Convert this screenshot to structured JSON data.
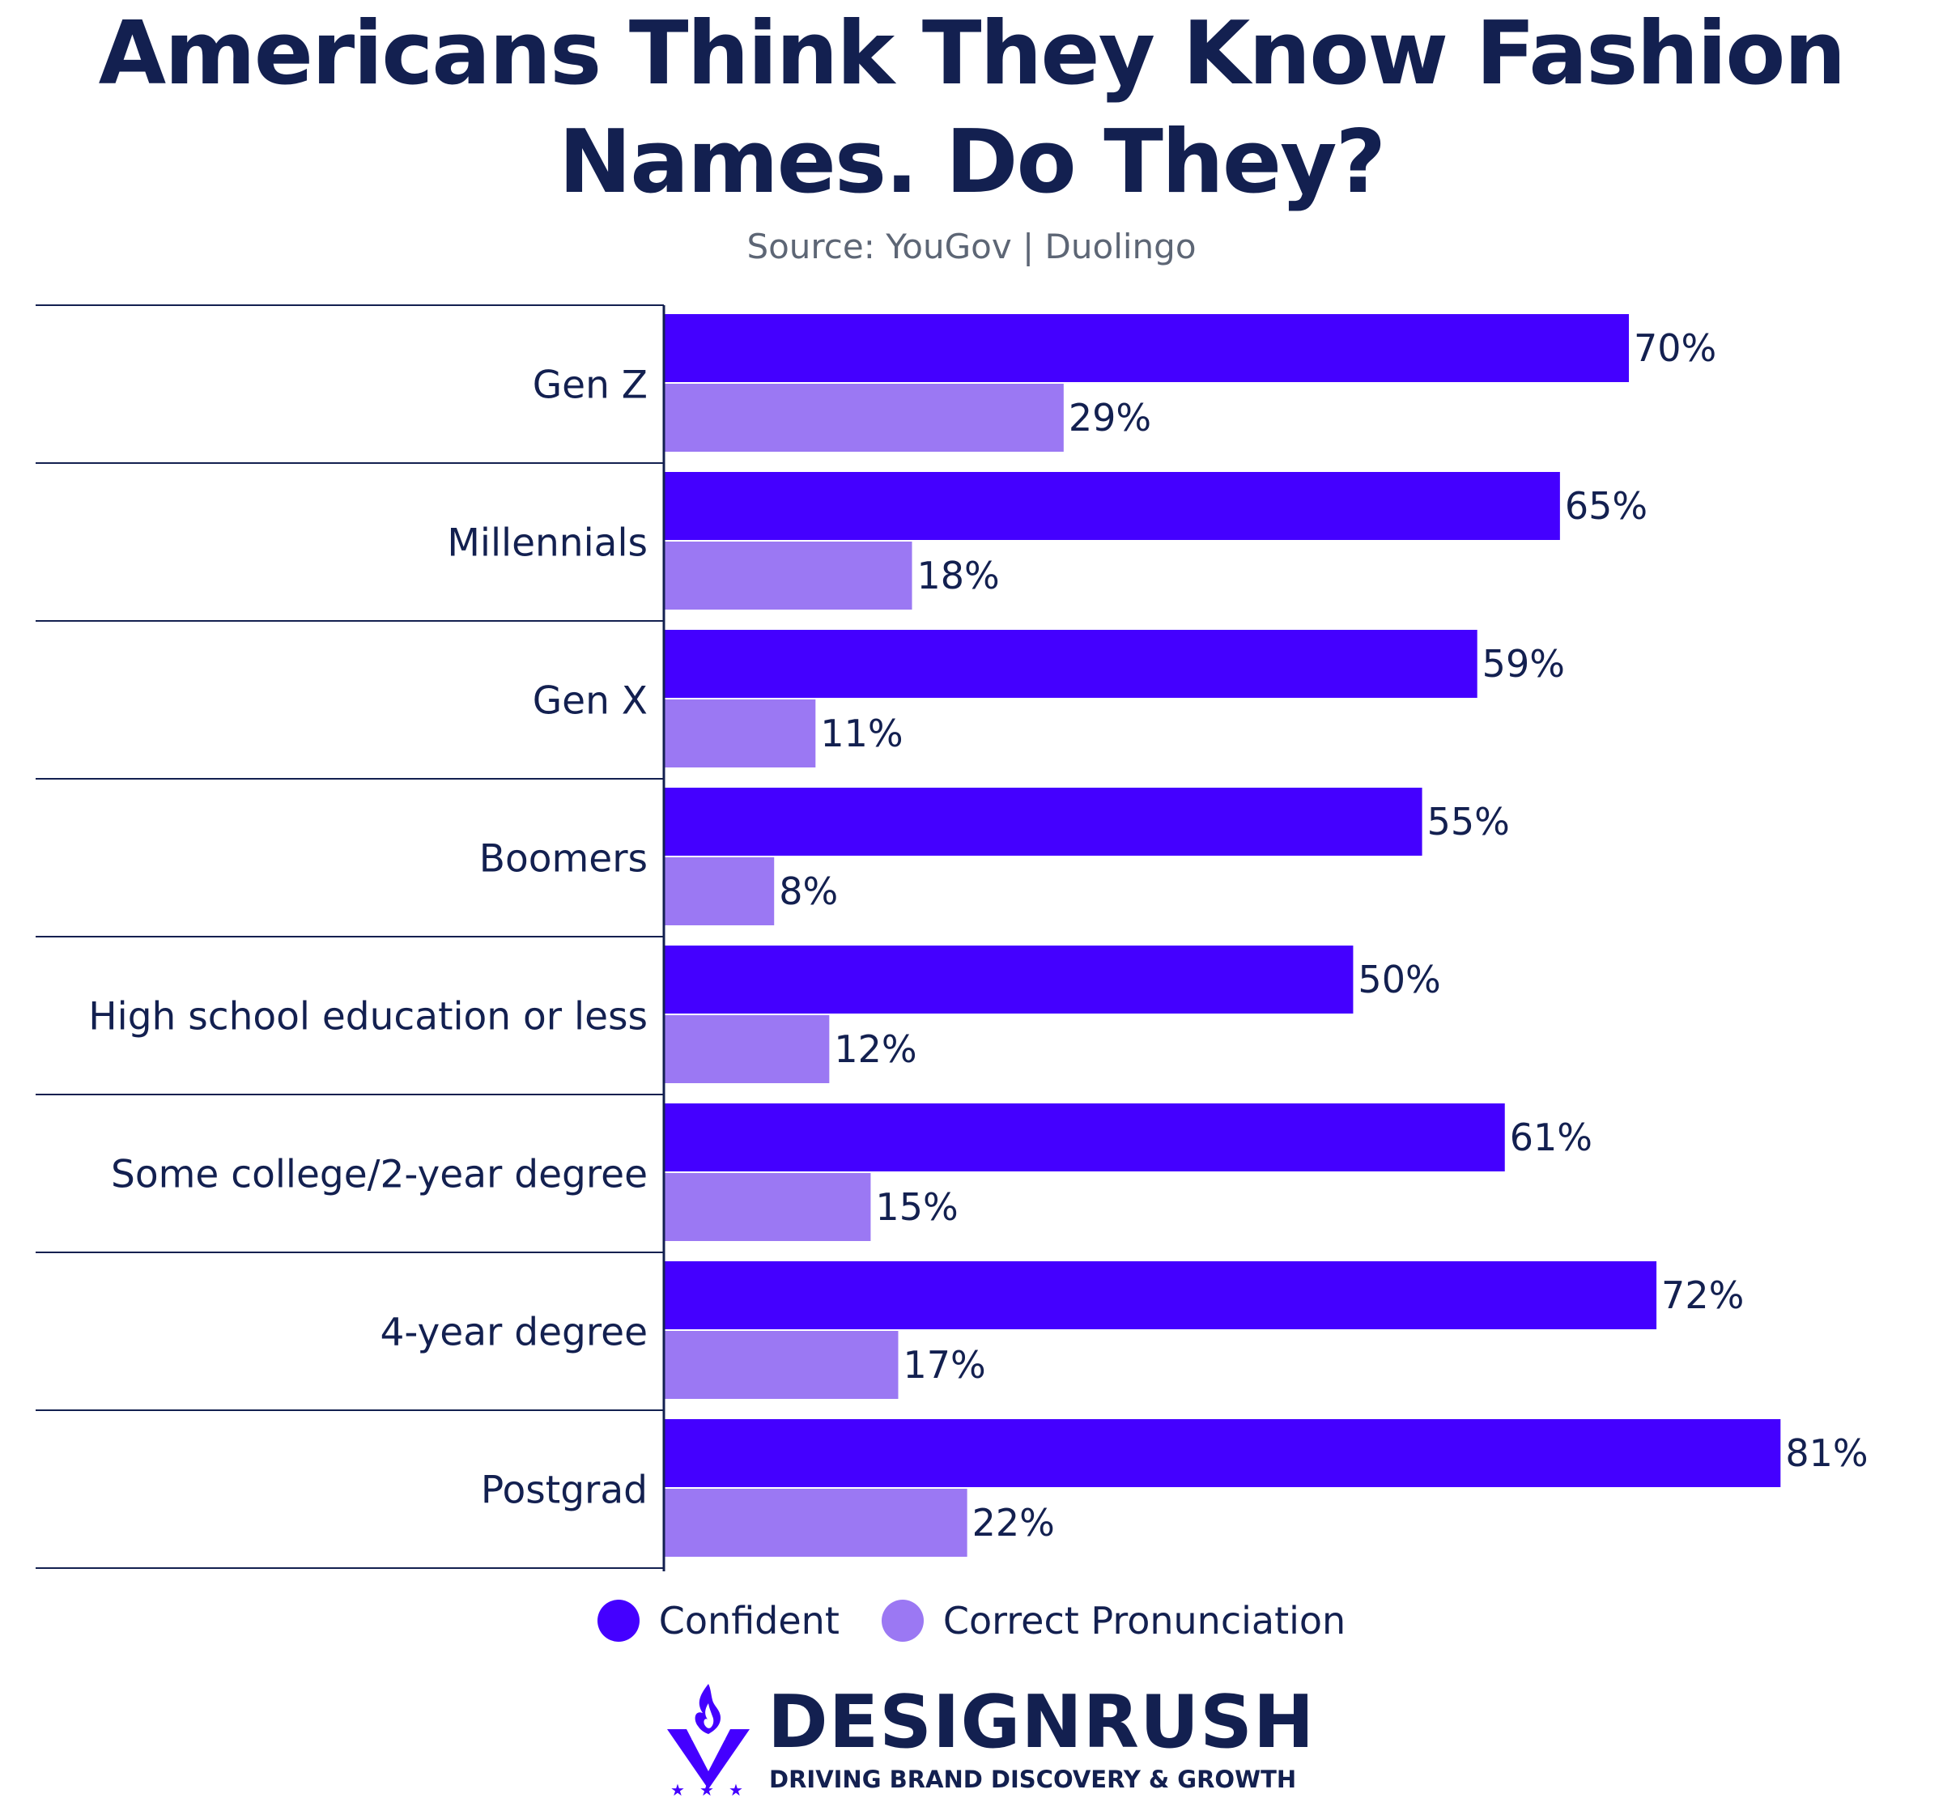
{
  "title_line1": "Americans Think They Know Fashion",
  "title_line2": "Names. Do They?",
  "source": "Source: YouGov | Duolingo",
  "colors": {
    "confident": "#4400ff",
    "correct": "#9b78f3",
    "text": "#132050",
    "source": "#5d6675"
  },
  "chart_data": {
    "type": "bar",
    "orientation": "horizontal",
    "categories": [
      "Gen Z",
      "Millennials",
      "Gen X",
      "Boomers",
      "High school education or less",
      "Some college/2-year degree",
      "4-year degree",
      "Postgrad"
    ],
    "series": [
      {
        "name": "Confident",
        "values": [
          70,
          65,
          59,
          55,
          50,
          61,
          72,
          81
        ]
      },
      {
        "name": "Correct Pronunciation",
        "values": [
          29,
          18,
          11,
          8,
          12,
          15,
          17,
          22
        ]
      }
    ],
    "value_suffix": "%",
    "xlim": [
      0,
      100
    ],
    "legend_position": "bottom",
    "grid": false
  },
  "legend": {
    "confident_label": "Confident",
    "correct_label": "Correct Pronunciation"
  },
  "brand": {
    "name": "DESIGNRUSH",
    "tagline": "DRIVING BRAND DISCOVERY & GROWTH",
    "logo_icon": "torch-shield-icon"
  }
}
